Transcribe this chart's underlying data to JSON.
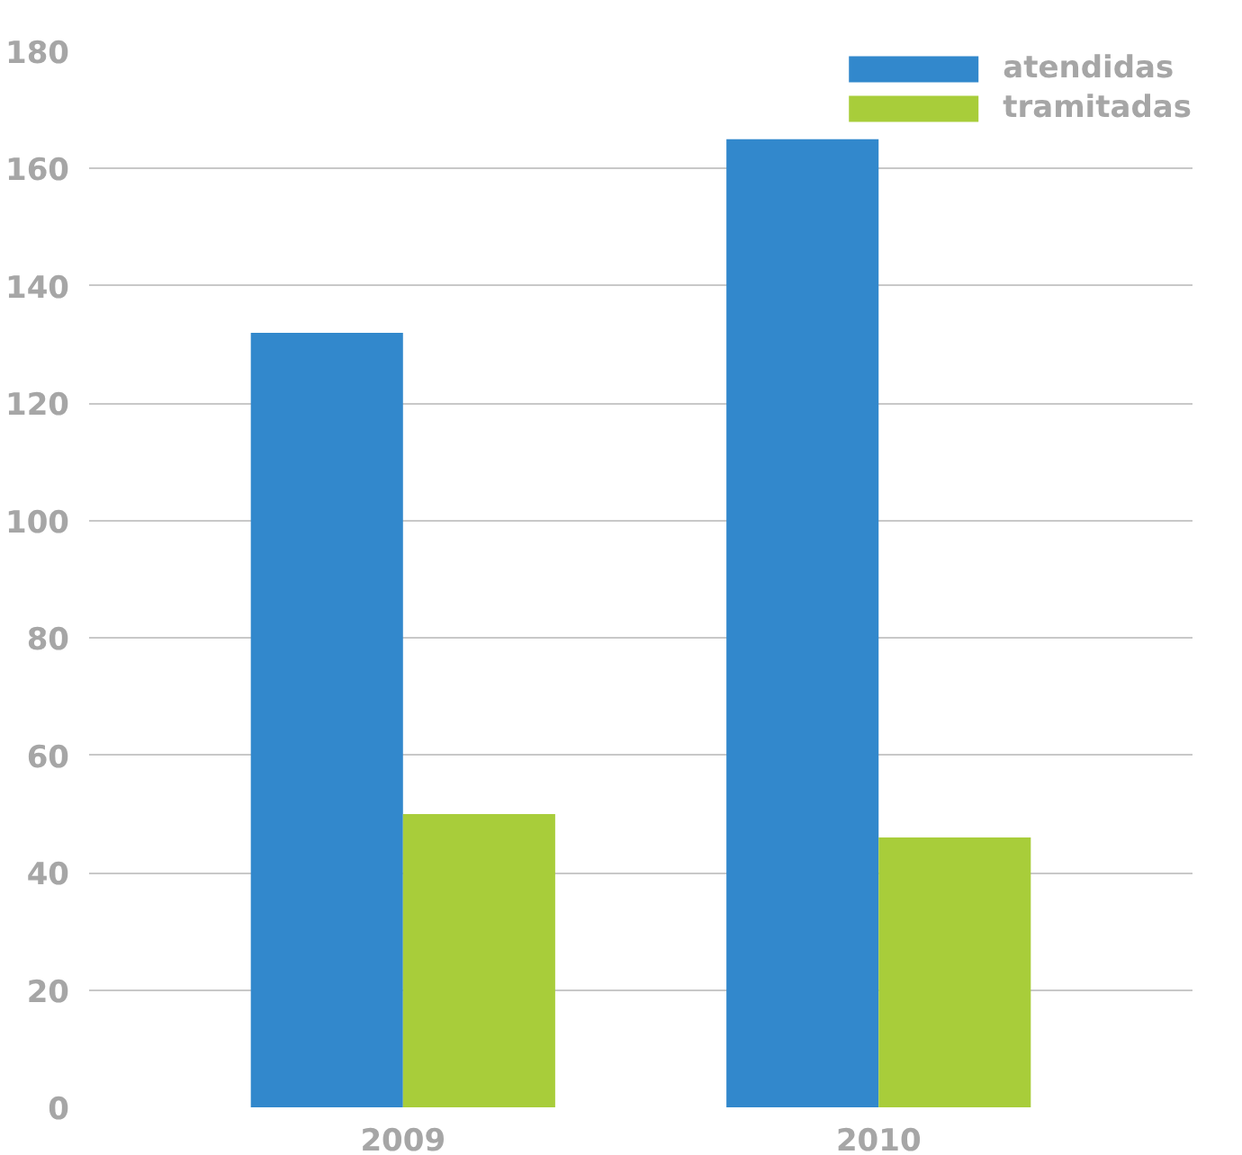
{
  "chart_data": {
    "type": "bar",
    "categories": [
      "2009",
      "2010"
    ],
    "series": [
      {
        "name": "atendidas",
        "color": "#3288cc",
        "values": [
          132,
          165
        ]
      },
      {
        "name": "tramitadas",
        "color": "#a8cd3a",
        "values": [
          50,
          46
        ]
      }
    ],
    "ylim": [
      0,
      180
    ],
    "yticks": [
      0,
      20,
      40,
      60,
      80,
      100,
      120,
      140,
      160,
      180
    ],
    "grid": "y",
    "legend": "top right"
  }
}
